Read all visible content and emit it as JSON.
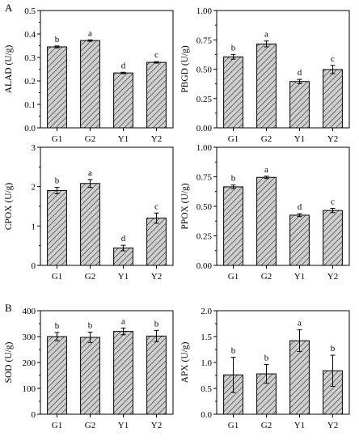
{
  "figure": {
    "panel_labels": [
      "A",
      "B"
    ]
  },
  "chart_data": [
    {
      "type": "bar",
      "panel": "A",
      "ylabel": "ALAD (U/g)",
      "categories": [
        "G1",
        "G2",
        "Y1",
        "Y2"
      ],
      "values": [
        0.345,
        0.372,
        0.234,
        0.279
      ],
      "errors": [
        0.004,
        0.003,
        0.003,
        0.003
      ],
      "letters": [
        "b",
        "a",
        "d",
        "c"
      ],
      "ylim": [
        0,
        0.5
      ],
      "yticks": [
        "0.0",
        "0.1",
        "0.2",
        "0.3",
        "0.4",
        "0.5"
      ],
      "bar_fill": "#c8c8c8",
      "hatch": "diagonal"
    },
    {
      "type": "bar",
      "panel": "A",
      "ylabel": "PBGD (U/g)",
      "categories": [
        "G1",
        "G2",
        "Y1",
        "Y2"
      ],
      "values": [
        0.605,
        0.715,
        0.395,
        0.497
      ],
      "errors": [
        0.02,
        0.025,
        0.018,
        0.035
      ],
      "letters": [
        "b",
        "a",
        "d",
        "c"
      ],
      "ylim": [
        0,
        1.0
      ],
      "yticks": [
        "0.00",
        "0.25",
        "0.50",
        "0.75",
        "1.00"
      ],
      "bar_fill": "#c8c8c8",
      "hatch": "diagonal"
    },
    {
      "type": "bar",
      "panel": "A",
      "ylabel": "CPOX (U/g)",
      "categories": [
        "G1",
        "G2",
        "Y1",
        "Y2"
      ],
      "values": [
        1.9,
        2.08,
        0.44,
        1.2
      ],
      "errors": [
        0.08,
        0.1,
        0.07,
        0.13
      ],
      "letters": [
        "b",
        "a",
        "d",
        "c"
      ],
      "ylim": [
        0,
        3
      ],
      "yticks": [
        "0",
        "1",
        "2",
        "3"
      ],
      "bar_fill": "#c8c8c8",
      "hatch": "diagonal"
    },
    {
      "type": "bar",
      "panel": "A",
      "ylabel": "PPOX (U/g)",
      "categories": [
        "G1",
        "G2",
        "Y1",
        "Y2"
      ],
      "values": [
        0.665,
        0.745,
        0.425,
        0.465
      ],
      "errors": [
        0.015,
        0.01,
        0.012,
        0.018
      ],
      "letters": [
        "b",
        "a",
        "d",
        "c"
      ],
      "ylim": [
        0,
        1.0
      ],
      "yticks": [
        "0.00",
        "0.25",
        "0.50",
        "0.75",
        "1.00"
      ],
      "bar_fill": "#c8c8c8",
      "hatch": "diagonal"
    },
    {
      "type": "bar",
      "panel": "B",
      "ylabel": "SOD (U/g)",
      "categories": [
        "G1",
        "G2",
        "Y1",
        "Y2"
      ],
      "values": [
        300,
        297,
        320,
        302
      ],
      "errors": [
        16,
        20,
        13,
        22
      ],
      "letters": [
        "b",
        "b",
        "a",
        "b"
      ],
      "ylim": [
        0,
        400
      ],
      "yticks": [
        "0",
        "100",
        "200",
        "300",
        "400"
      ],
      "bar_fill": "#c8c8c8",
      "hatch": "diagonal"
    },
    {
      "type": "bar",
      "panel": "B",
      "ylabel": "APX (U/g)",
      "categories": [
        "G1",
        "G2",
        "Y1",
        "Y2"
      ],
      "values": [
        0.76,
        0.78,
        1.42,
        0.84
      ],
      "errors": [
        0.34,
        0.18,
        0.21,
        0.3
      ],
      "letters": [
        "b",
        "b",
        "a",
        "b"
      ],
      "ylim": [
        0,
        2.0
      ],
      "yticks": [
        "0.0",
        "0.5",
        "1.0",
        "1.5",
        "2.0"
      ],
      "bar_fill": "#c8c8c8",
      "hatch": "diagonal"
    }
  ]
}
